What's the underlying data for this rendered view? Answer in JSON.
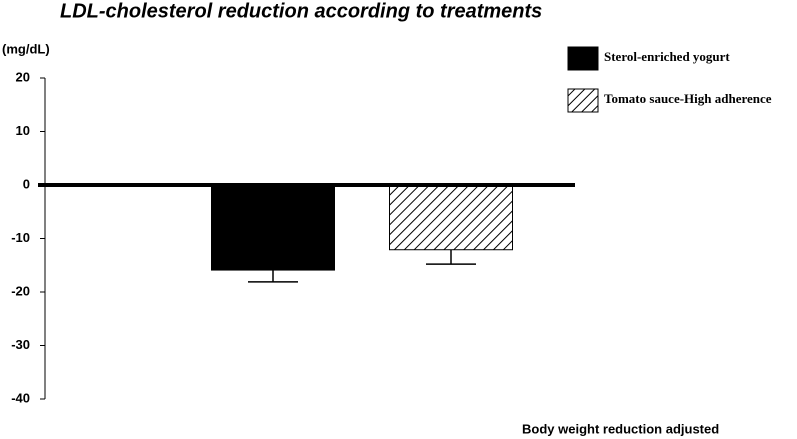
{
  "chart_data": {
    "type": "bar",
    "title": "LDL-cholesterol reduction according to treatments",
    "y_label": "(mg/dL)",
    "x_label": "Body weight reduction adjusted",
    "categories": [
      null
    ],
    "series": [
      {
        "name": "Sterol-enriched yogurt",
        "color": "#000000",
        "pattern": "solid",
        "values": [
          -15.9
        ],
        "errors": [
          2.2
        ]
      },
      {
        "name": "Tomato sauce-High adherence",
        "color": "#000000",
        "pattern": "hatch",
        "values": [
          -12.1
        ],
        "errors": [
          2.7
        ]
      }
    ],
    "ylim": [
      -40,
      20
    ],
    "yticks": [
      20,
      10,
      0,
      -10,
      -20,
      -30,
      -40
    ]
  }
}
